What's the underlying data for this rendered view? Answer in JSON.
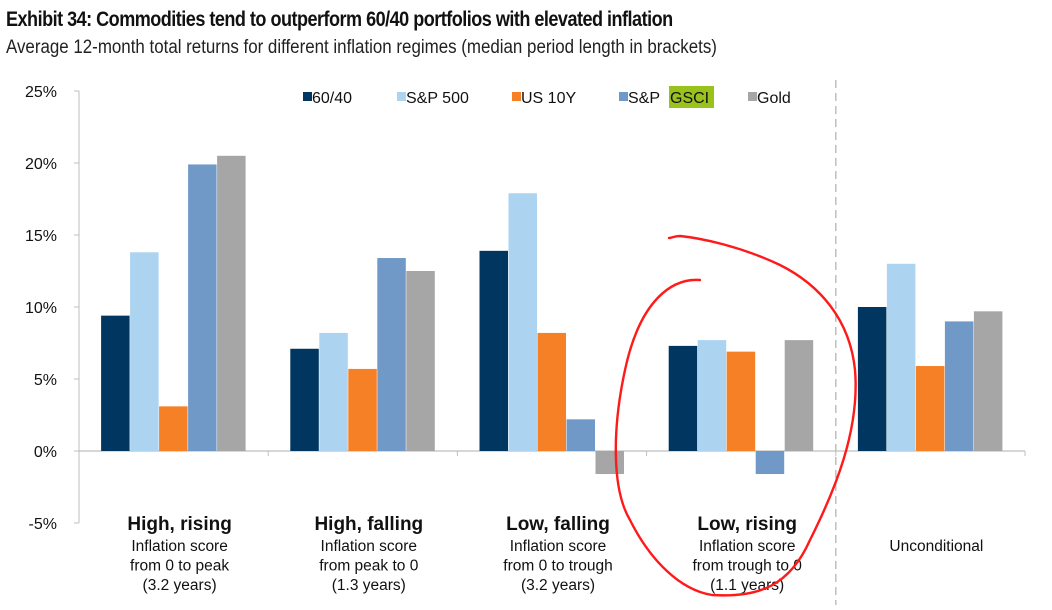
{
  "chart_data": {
    "type": "bar",
    "title": "Exhibit 34: Commodities tend to outperform 60/40 portfolios with elevated inflation",
    "subtitle": "Average 12-month total returns for different inflation regimes (median period length in brackets)",
    "xlabel": "",
    "ylabel": "",
    "ylim": [
      -5,
      25
    ],
    "yticks": [
      25,
      20,
      15,
      10,
      5,
      0,
      -5
    ],
    "ytick_labels": [
      "25%",
      "20%",
      "15%",
      "10%",
      "5%",
      "0%",
      "-5%"
    ],
    "grid": false,
    "legend_position": "top-center",
    "categories": [
      {
        "title": "High, rising",
        "lines": [
          "Inflation score",
          "from 0 to peak",
          "(3.2 years)"
        ]
      },
      {
        "title": "High, falling",
        "lines": [
          "Inflation score",
          "from peak to 0",
          "(1.3 years)"
        ]
      },
      {
        "title": "Low, falling",
        "lines": [
          "Inflation score",
          "from 0 to trough",
          "(3.2 years)"
        ]
      },
      {
        "title": "Low, rising",
        "lines": [
          "Inflation score",
          "from trough to 0",
          "(1.1 years)"
        ]
      },
      {
        "title": "",
        "lines": [
          "Unconditional"
        ]
      }
    ],
    "series": [
      {
        "name": "60/40",
        "color": "#003660",
        "values": [
          9.4,
          7.1,
          13.9,
          7.3,
          10.0
        ]
      },
      {
        "name": "S&P 500",
        "color": "#acd3f0",
        "values": [
          13.8,
          8.2,
          17.9,
          7.7,
          13.0
        ]
      },
      {
        "name": "US 10Y",
        "color": "#f58025",
        "values": [
          3.1,
          5.7,
          8.2,
          6.9,
          5.9
        ]
      },
      {
        "name": "S&P GSCI",
        "color": "#7099c7",
        "values": [
          19.9,
          13.4,
          2.2,
          -1.6,
          9.0
        ]
      },
      {
        "name": "Gold",
        "color": "#a6a6a6",
        "values": [
          20.5,
          12.5,
          -1.6,
          7.7,
          9.7
        ]
      }
    ],
    "legend_highlight": {
      "series": "S&P GSCI",
      "word": "GSCI",
      "color": "#99c21c"
    },
    "annotation": {
      "type": "hand-drawn circle",
      "color": "#ff1a1a",
      "target_category": "Low, rising"
    },
    "divider_before_category": "Unconditional"
  }
}
